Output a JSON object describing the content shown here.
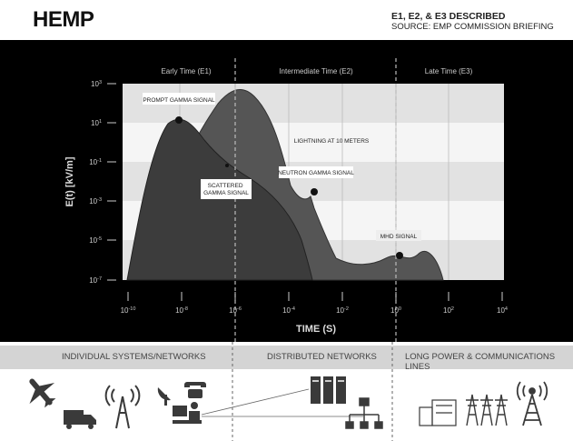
{
  "header": {
    "title": "HEMP",
    "subtitle_line1": "E1, E2, & E3 DESCRIBED",
    "subtitle_line2": "SOURCE: EMP COMMISSION BRIEFING"
  },
  "chart_data": {
    "type": "area",
    "xlabel": "TIME (S)",
    "ylabel": "E(t) [kV/m]",
    "x_ticks": [
      "10-10",
      "10-8",
      "10-6",
      "10-4",
      "10-2",
      "100",
      "102",
      "104"
    ],
    "y_ticks": [
      "103",
      "101",
      "10-1",
      "10-3",
      "10-5",
      "10-7"
    ],
    "regions": [
      "Early Time (E1)",
      "Intermediate Time (E2)",
      "Late Time (E3)"
    ],
    "annotations": [
      {
        "label": "PROMPT GAMMA SIGNAL",
        "time": "1e-8",
        "field": "1e1"
      },
      {
        "label": "LIGHTNING AT 10 METERS",
        "time": "",
        "field": ""
      },
      {
        "label": "SCATTERED GAMMA SIGNAL",
        "time": "4e-7",
        "field": "1e-1"
      },
      {
        "label": "NEUTRON GAMMA SIGNAL",
        "time": "1e-3",
        "field": "1e-3"
      },
      {
        "label": "MHD SIGNAL",
        "time": "1e0",
        "field": "1e-5"
      }
    ]
  },
  "categories": {
    "individual": "INDIVIDUAL SYSTEMS/NETWORKS",
    "distributed": "DISTRIBUTED NETWORKS",
    "long_lines": "LONG POWER & COMMUNICATIONS LINES"
  },
  "icons": [
    "airplane-icon",
    "truck-icon",
    "radio-tower-icon",
    "satellite-dish-icon",
    "telephone-icon",
    "computer-user-icon",
    "server-rack-icon",
    "network-tree-icon",
    "power-plant-icon",
    "transmission-tower-icon",
    "cell-tower-icon"
  ]
}
